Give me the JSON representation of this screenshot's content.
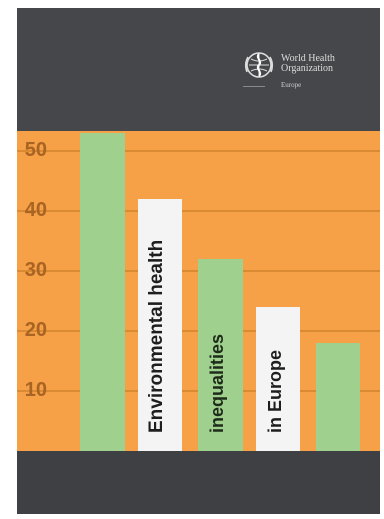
{
  "organization": {
    "name_line1": "World Health",
    "name_line2": "Organization",
    "region": "Europe",
    "emblem": "who-emblem-icon"
  },
  "title_panels": [
    {
      "text": "Environmental health"
    },
    {
      "text": "inequalities"
    },
    {
      "text": "in Europe"
    }
  ],
  "chart_data": {
    "type": "bar",
    "title": "",
    "xlabel": "",
    "ylabel": "",
    "ylim": [
      0,
      55
    ],
    "y_ticks": [
      "50",
      "40",
      "30",
      "20",
      "10"
    ],
    "grid": true,
    "values": [
      53,
      42,
      32,
      24,
      18
    ],
    "bar_styles": [
      "green",
      "white",
      "green",
      "white",
      "green"
    ]
  },
  "colors": {
    "background_orange": "#f6a047",
    "dark_grey": "#3f4043",
    "bar_green": "#9fd08d",
    "panel_white": "#f4f4f4",
    "tick_brown": "#a86422"
  }
}
